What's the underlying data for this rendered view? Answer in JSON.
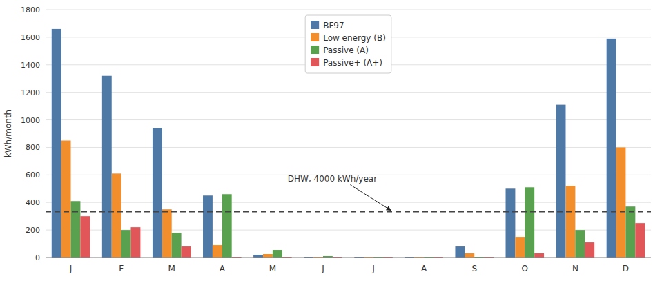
{
  "chart_data": {
    "type": "bar",
    "categories": [
      "J",
      "F",
      "M",
      "A",
      "M",
      "J",
      "J",
      "A",
      "S",
      "O",
      "N",
      "D"
    ],
    "series": [
      {
        "name": "BF97",
        "values": [
          1660,
          1320,
          940,
          450,
          20,
          5,
          5,
          5,
          80,
          500,
          1110,
          1590
        ]
      },
      {
        "name": "Low energy (B)",
        "values": [
          850,
          610,
          350,
          90,
          25,
          5,
          5,
          5,
          30,
          150,
          520,
          800
        ]
      },
      {
        "name": "Passive (A)",
        "values": [
          410,
          200,
          180,
          460,
          55,
          10,
          5,
          5,
          5,
          510,
          200,
          370
        ]
      },
      {
        "name": "Passive+ (A+)",
        "values": [
          300,
          220,
          80,
          5,
          5,
          5,
          5,
          5,
          5,
          30,
          110,
          250
        ]
      }
    ],
    "y_label": "kWh/month",
    "ylim": [
      0,
      1800
    ],
    "yticks": [
      0,
      200,
      400,
      600,
      800,
      1000,
      1200,
      1400,
      1600,
      1800
    ],
    "grid": true,
    "legend": "top",
    "annotations": [
      {
        "text": "DHW, 4000 kWh/year",
        "y": 333
      }
    ]
  }
}
